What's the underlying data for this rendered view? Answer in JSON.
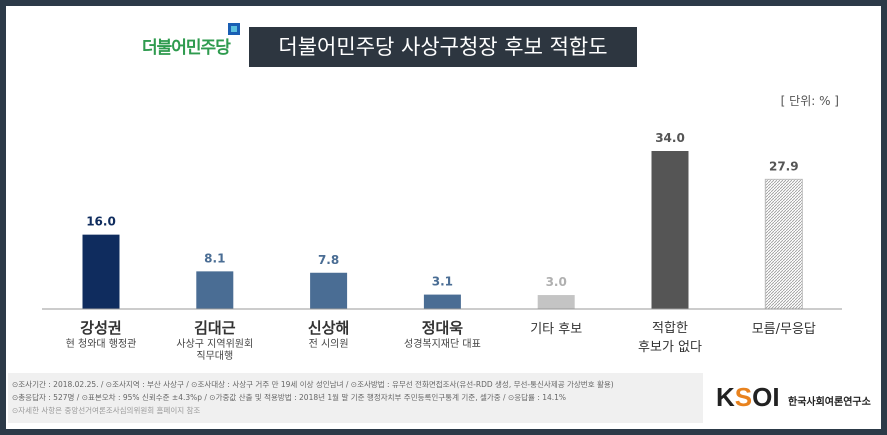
{
  "header": {
    "logo_text": "더불어민주당",
    "title": "더불어민주당 사상구청장 후보 적합도",
    "unit": "[ 단위: % ]"
  },
  "chart_data": {
    "type": "bar",
    "title": "더불어민주당 사상구청장 후보 적합도",
    "unit": "%",
    "ylim": [
      0,
      36
    ],
    "categories": [
      "강성권",
      "김대근",
      "신상해",
      "정대욱",
      "기타 후보",
      "적합한 후보가 없다",
      "모름/무응답"
    ],
    "subtitles": [
      "현 청와대 행정관",
      "사상구 지역위원회 직무대행",
      "전 시의원",
      "성경복지재단 대표",
      "",
      "",
      ""
    ],
    "values": [
      16.0,
      8.1,
      7.8,
      3.1,
      3.0,
      34.0,
      27.9
    ],
    "value_labels": [
      "16.0",
      "8.1",
      "7.8",
      "3.1",
      "3.0",
      "34.0",
      "27.9"
    ],
    "colors": [
      "#0f2c5e",
      "#4a6d94",
      "#4a6d94",
      "#4a6d94",
      "#c4c4c4",
      "#555555",
      "hatch"
    ],
    "label_colors": [
      "#0f2c5e",
      "#4a6d94",
      "#4a6d94",
      "#4a6d94",
      "#b0b0b0",
      "#555555",
      "#555555"
    ]
  },
  "footer": {
    "line1": "⊙조사기간 : 2018.02.25. / ⊙조사지역 : 부산 사상구 / ⊙조사대상 : 사상구 거주 만 19세 이상 성인남녀 / ⊙조사방법 : 유무선 전화면접조사(유선-RDD 생성, 무선-통신사제공 가상번호 활용)",
    "line2": "⊙총응답자 : 527명 / ⊙표본오차 : 95% 신뢰수준 ±4.3%p / ⊙가중값 산출 및 적용방법 : 2018년 1월 말 기준 행정자치부 주민등록인구통계 기준, 셀가중 / ⊙응답률 : 14.1%",
    "line3": "⊙자세한 사항은 중앙선거여론조사심의위원회 홈페이지 참조"
  },
  "brand": {
    "logo": "KSOI",
    "name": "한국사회여론연구소"
  }
}
